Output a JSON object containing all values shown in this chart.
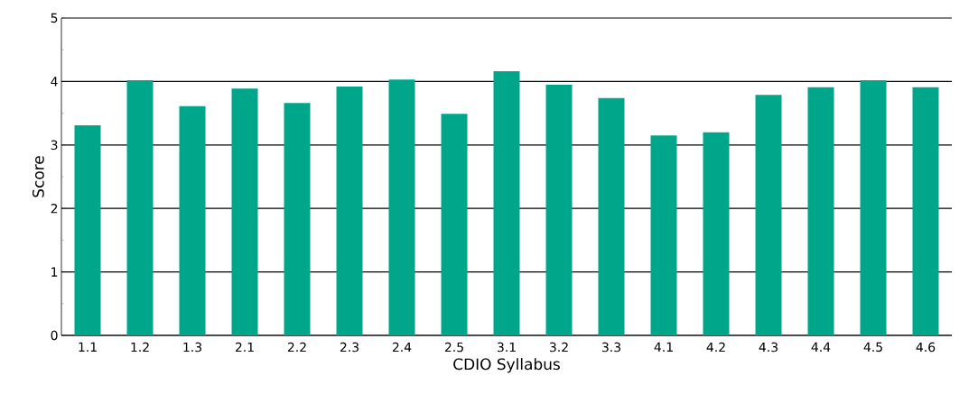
{
  "chart_data": {
    "type": "bar",
    "xlabel": "CDIO Syllabus",
    "ylabel": "Score",
    "categories": [
      "1.1",
      "1.2",
      "1.3",
      "2.1",
      "2.2",
      "2.3",
      "2.4",
      "2.5",
      "3.1",
      "3.2",
      "3.3",
      "4.1",
      "4.2",
      "4.3",
      "4.4",
      "4.5",
      "4.6"
    ],
    "values": [
      3.31,
      4.02,
      3.61,
      3.89,
      3.66,
      3.92,
      4.03,
      3.49,
      4.16,
      3.95,
      3.74,
      3.15,
      3.2,
      3.79,
      3.91,
      4.02,
      3.91
    ],
    "color": "#00a68a",
    "ylim": [
      0,
      5
    ],
    "yticks": [
      0,
      1,
      2,
      3,
      4,
      5
    ],
    "grid": "y"
  }
}
